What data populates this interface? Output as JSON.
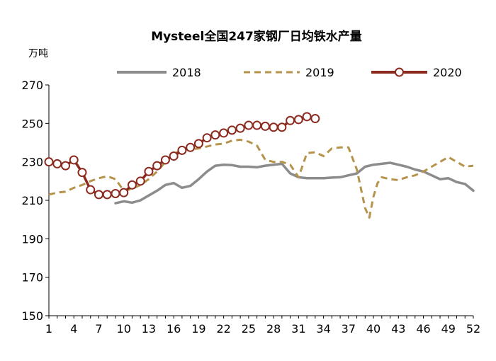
{
  "chart_data": {
    "type": "line",
    "title": "Mysteel全国247家钢厂日均铁水产量",
    "unit_label": "万吨",
    "xlabel": "",
    "ylabel": "",
    "ylim": [
      150,
      270
    ],
    "y_ticks": [
      150,
      170,
      190,
      210,
      230,
      250,
      270
    ],
    "x_ticks": [
      1,
      4,
      7,
      10,
      13,
      16,
      19,
      22,
      25,
      28,
      31,
      34,
      37,
      40,
      43,
      46,
      49,
      52
    ],
    "xlim": [
      1,
      52
    ],
    "grid": false,
    "legend_position": "top",
    "series": [
      {
        "name": "2018",
        "color": "#8c8c8c",
        "style": "solid",
        "x": [
          9,
          10,
          11,
          12,
          13,
          14,
          15,
          16,
          17,
          18,
          19,
          20,
          21,
          22,
          23,
          24,
          25,
          26,
          27,
          28,
          29,
          30,
          31,
          32,
          33,
          34,
          35,
          36,
          37,
          38,
          39,
          40,
          41,
          42,
          43,
          44,
          45,
          46,
          47,
          48,
          49,
          50,
          51,
          52
        ],
        "values": [
          208.5,
          209.5,
          208.8,
          210,
          212.5,
          215,
          218,
          219,
          216.5,
          217.5,
          221,
          225,
          228,
          228.5,
          228.3,
          227.5,
          227.5,
          227.2,
          228,
          228.5,
          229,
          224,
          222,
          221.5,
          221.5,
          221.5,
          221.8,
          222,
          223,
          224,
          227.5,
          228.5,
          229,
          229.5,
          228.5,
          227.5,
          226,
          225,
          223,
          221,
          221.5,
          219.5,
          218.5,
          215
        ]
      },
      {
        "name": "2019",
        "color": "#b5934a",
        "style": "dashed",
        "x": [
          1,
          2,
          3,
          4,
          5,
          6,
          7,
          8,
          9,
          10,
          11,
          12,
          13,
          14,
          15,
          16,
          17,
          18,
          19,
          20,
          21,
          22,
          23,
          24,
          25,
          26,
          27,
          28,
          29,
          30,
          31,
          32,
          33,
          34,
          35,
          36,
          37,
          38,
          39,
          39.5,
          40,
          40.5,
          41,
          42,
          43,
          44,
          45,
          46,
          47,
          48,
          49,
          50,
          51,
          52
        ],
        "values": [
          213,
          214,
          214.5,
          216.5,
          218,
          220,
          221.5,
          222.5,
          221,
          215,
          216,
          218,
          221,
          225,
          230,
          234,
          236.5,
          236.5,
          237,
          238,
          239,
          239.5,
          241,
          241.5,
          240.5,
          238.5,
          231,
          230,
          230,
          228.5,
          222,
          234.5,
          235,
          233,
          237,
          237.5,
          237.5,
          226,
          206,
          201,
          212,
          219,
          222,
          221,
          220.5,
          222,
          223,
          225,
          227.5,
          230,
          232.5,
          230,
          227.5,
          228
        ]
      },
      {
        "name": "2020",
        "color": "#8b2a1e",
        "style": "solid-marker",
        "x": [
          1,
          2,
          3,
          4,
          5,
          6,
          7,
          8,
          9,
          10,
          11,
          12,
          13,
          14,
          15,
          16,
          17,
          18,
          19,
          20,
          21,
          22,
          23,
          24,
          25,
          26,
          27,
          28,
          29,
          30,
          31,
          32,
          33
        ],
        "values": [
          230,
          229,
          228,
          231,
          224.5,
          215.5,
          213,
          213,
          213.5,
          214,
          218,
          220,
          225,
          228,
          231,
          233,
          236,
          237.5,
          239.5,
          242.5,
          244,
          245,
          246.5,
          247.5,
          249,
          249,
          248.5,
          248,
          248,
          251.5,
          252,
          253.5,
          252.5
        ]
      }
    ]
  }
}
